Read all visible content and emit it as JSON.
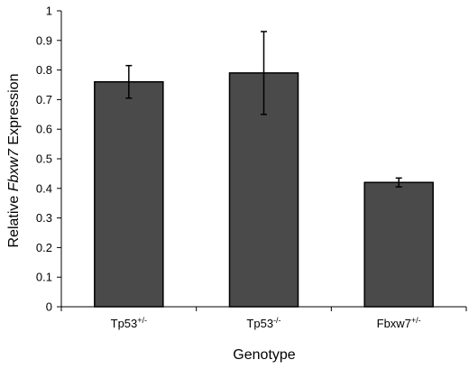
{
  "chart_data": {
    "type": "bar",
    "categories": [
      {
        "base": "Tp53",
        "sup": "+/-"
      },
      {
        "base": "Tp53",
        "sup": "-/-"
      },
      {
        "base": "Fbxw7",
        "sup": "+/-"
      }
    ],
    "values": [
      0.76,
      0.79,
      0.42
    ],
    "error": [
      0.055,
      0.14,
      0.015
    ],
    "ylim": [
      0,
      1
    ],
    "yticks": [
      "0",
      "0.1",
      "0.2",
      "0.3",
      "0.4",
      "0.5",
      "0.6",
      "0.7",
      "0.8",
      "0.9",
      "1"
    ],
    "xlabel": "Genotype",
    "ylabel": {
      "pre": "Relative ",
      "italic": "Fbxw7",
      "post": " Expression"
    },
    "bar_color": "#4a4a4a",
    "grid": false,
    "legend": false
  }
}
